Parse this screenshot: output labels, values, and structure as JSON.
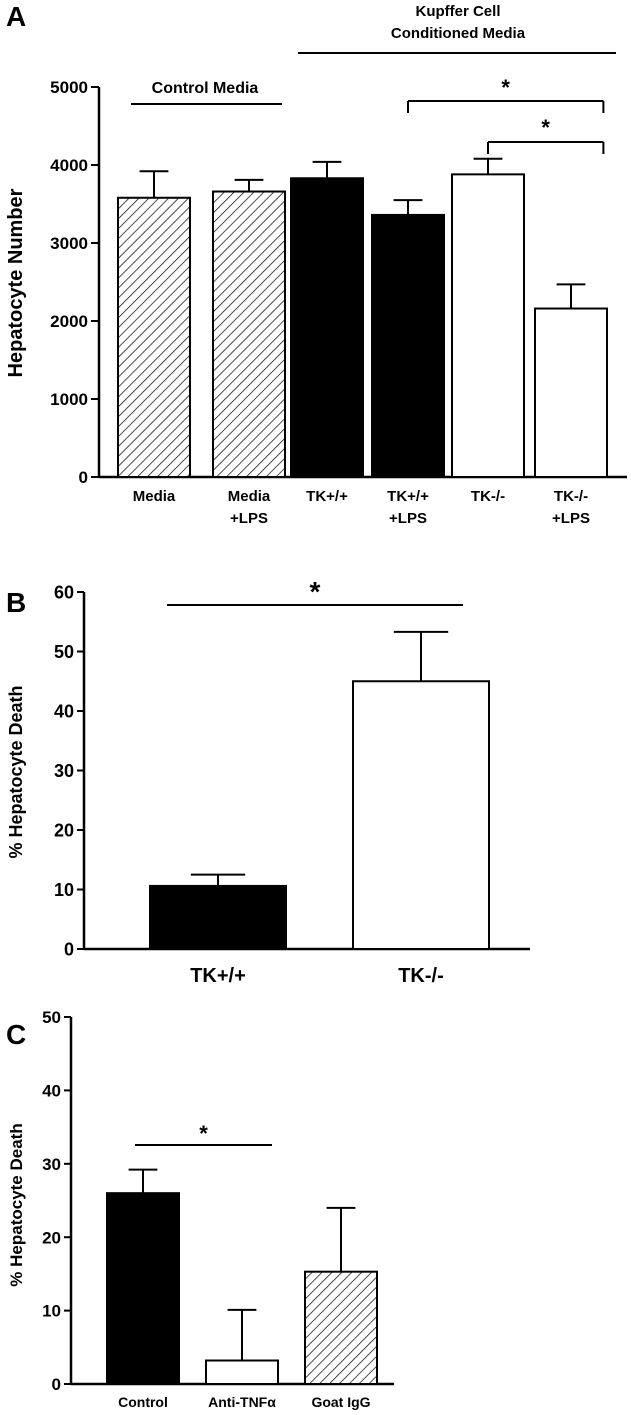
{
  "colors": {
    "black": "#000000",
    "white": "#ffffff",
    "hatch": "#000000"
  },
  "chart_data": [
    {
      "panel": "A",
      "type": "bar",
      "ylabel": "Hepatocyte Number",
      "ylim": [
        0,
        5000
      ],
      "yticks": [
        "0",
        "1000",
        "2000",
        "3000",
        "4000",
        "5000"
      ],
      "yticks_values": [
        0,
        1000,
        2000,
        3000,
        4000,
        5000
      ],
      "categories": [
        [
          "Media"
        ],
        [
          "Media",
          "+LPS"
        ],
        [
          "TK+/+"
        ],
        [
          "TK+/+",
          "+LPS"
        ],
        [
          "TK-/-"
        ],
        [
          "TK-/-",
          "+LPS"
        ]
      ],
      "values": [
        3580,
        3660,
        3830,
        3360,
        3880,
        2160
      ],
      "errors": [
        340,
        150,
        210,
        190,
        200,
        310
      ],
      "fills": [
        "hatch",
        "hatch",
        "black",
        "black",
        "white",
        "white"
      ],
      "group_labels": {
        "control": "Control Media",
        "kupffer_line1": "Kupffer Cell",
        "kupffer_line2": "Conditioned Media"
      },
      "significance": [
        {
          "from": 3,
          "to": 5,
          "label": "*"
        },
        {
          "from": 4,
          "to": 5,
          "label": "*"
        }
      ],
      "grid": false
    },
    {
      "panel": "B",
      "type": "bar",
      "ylabel": "% Hepatocyte Death",
      "ylim": [
        0,
        60
      ],
      "yticks": [
        "0",
        "10",
        "20",
        "30",
        "40",
        "50",
        "60"
      ],
      "yticks_values": [
        0,
        10,
        20,
        30,
        40,
        50,
        60
      ],
      "categories": [
        [
          "TK+/+"
        ],
        [
          "TK-/-"
        ]
      ],
      "values": [
        10.6,
        45
      ],
      "errors": [
        1.9,
        8.3
      ],
      "fills": [
        "black",
        "white"
      ],
      "significance": [
        {
          "from": 0,
          "to": 1,
          "label": "*"
        }
      ],
      "grid": false
    },
    {
      "panel": "C",
      "type": "bar",
      "ylabel": "% Hepatocyte Death",
      "ylim": [
        0,
        50
      ],
      "yticks": [
        "0",
        "10",
        "20",
        "30",
        "40",
        "50"
      ],
      "yticks_values": [
        0,
        10,
        20,
        30,
        40,
        50
      ],
      "categories": [
        [
          "Control"
        ],
        [
          "Anti-TNFα"
        ],
        [
          "Goat IgG"
        ]
      ],
      "values": [
        26,
        3.2,
        15.3
      ],
      "errors": [
        3.2,
        6.9,
        8.7
      ],
      "fills": [
        "black",
        "white",
        "hatch"
      ],
      "significance": [
        {
          "from": 0,
          "to": 1,
          "label": "*"
        }
      ],
      "grid": false
    }
  ]
}
